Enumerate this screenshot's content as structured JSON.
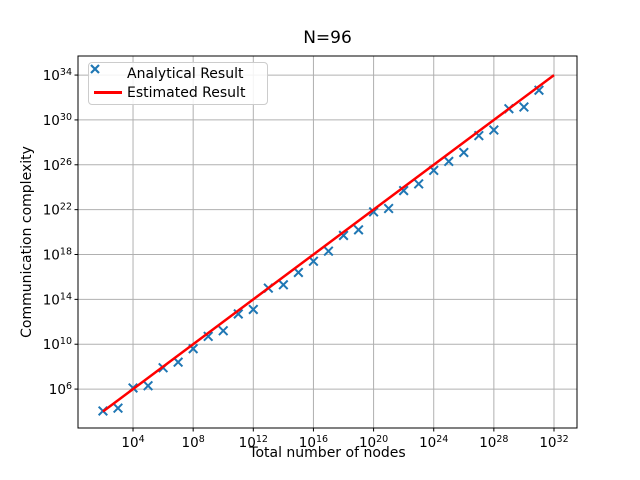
{
  "chart_data": {
    "type": "scatter",
    "title": "N=96",
    "xlabel": "Total number of nodes",
    "ylabel": "Communication complexity",
    "x_scale": "log",
    "y_scale": "log",
    "xlim_exp": [
      0.34,
      33.53
    ],
    "ylim_exp": [
      2.53,
      35.7
    ],
    "x_ticks_exp": [
      4,
      8,
      12,
      16,
      20,
      24,
      28,
      32
    ],
    "y_ticks_exp": [
      6,
      10,
      14,
      18,
      22,
      26,
      30,
      34
    ],
    "grid": true,
    "grid_color": "#b0b0b0",
    "axis_color": "#000000",
    "legend_position": "upper left",
    "series": [
      {
        "name": "Analytical Result",
        "type": "scatter",
        "marker": "x",
        "color": "#1f77b4",
        "x_exp": [
          2,
          3,
          4,
          5,
          6,
          7,
          8,
          9,
          10,
          11,
          12,
          13,
          14,
          15,
          16,
          17,
          18,
          19,
          20,
          21,
          22,
          23,
          24,
          25,
          26,
          27,
          28,
          29,
          30,
          31
        ],
        "y_exp": [
          4.05,
          4.3,
          6.1,
          6.3,
          7.9,
          8.4,
          9.6,
          10.7,
          11.2,
          12.7,
          13.1,
          15.0,
          15.3,
          16.4,
          17.4,
          18.3,
          19.7,
          20.2,
          21.8,
          22.1,
          23.7,
          24.3,
          25.5,
          26.3,
          27.1,
          28.6,
          29.1,
          31.0,
          31.15,
          32.65
        ]
      },
      {
        "name": "Estimated Result",
        "type": "line",
        "color": "#ff0000",
        "x_exp": [
          2,
          32
        ],
        "y_exp": [
          4,
          34
        ]
      }
    ]
  }
}
